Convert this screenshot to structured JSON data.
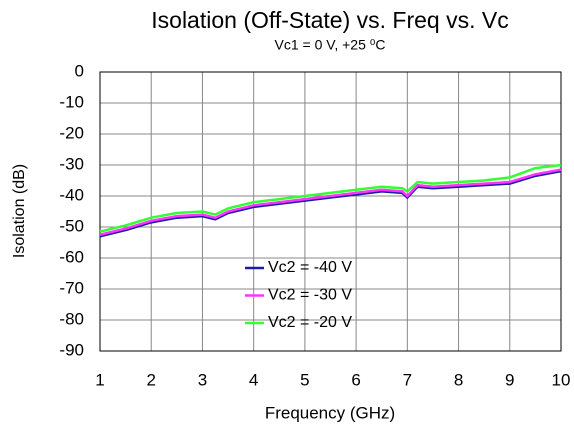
{
  "chart_data": {
    "type": "line",
    "title": "Isolation (Off-State) vs. Freq vs. Vc",
    "subtitle": "Vc1 = 0 V, +25 ⁰C",
    "x_label": "Frequency (GHz)",
    "y_label": "Isolation (dB)",
    "x": [
      1,
      1.5,
      2,
      2.5,
      3,
      3.25,
      3.5,
      4,
      4.5,
      5,
      5.5,
      6,
      6.5,
      6.9,
      7,
      7.2,
      7.5,
      8,
      8.5,
      9,
      9.5,
      10
    ],
    "series": [
      {
        "name": "Vc2 = -40 V",
        "color": "#1c1ca8",
        "values": [
          -53,
          -51,
          -48.5,
          -47,
          -46.5,
          -47.5,
          -45.5,
          -43.5,
          -42.5,
          -41.5,
          -40.5,
          -39.5,
          -38.5,
          -39,
          -40.5,
          -37,
          -37.5,
          -37,
          -36.5,
          -36,
          -33.5,
          -32
        ]
      },
      {
        "name": "Vc2 = -30 V",
        "color": "#ff33ff",
        "values": [
          -52.5,
          -50.5,
          -48,
          -46.5,
          -46,
          -47,
          -45,
          -43,
          -42,
          -41,
          -40,
          -39,
          -38,
          -38.5,
          -40,
          -36.5,
          -37,
          -36.5,
          -36,
          -35.5,
          -33,
          -31.5
        ]
      },
      {
        "name": "Vc2 = -20 V",
        "color": "#33ff33",
        "values": [
          -51.5,
          -49.5,
          -47,
          -45.5,
          -45,
          -46,
          -44,
          -42,
          -41,
          -40,
          -39,
          -38,
          -37,
          -37.5,
          -38.5,
          -35.5,
          -36,
          -35.5,
          -35,
          -34,
          -31,
          -30
        ]
      }
    ],
    "xlim": [
      1,
      10
    ],
    "ylim": [
      -90,
      0
    ],
    "xticks": [
      1,
      2,
      3,
      4,
      5,
      6,
      7,
      8,
      9,
      10
    ],
    "yticks": [
      0,
      -10,
      -20,
      -30,
      -40,
      -50,
      -60,
      -70,
      -80,
      -90
    ],
    "grid": true
  }
}
